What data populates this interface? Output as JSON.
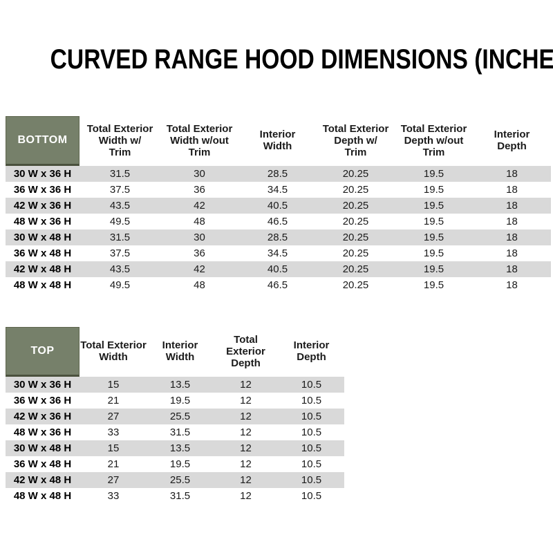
{
  "title": "CURVED RANGE HOOD DIMENSIONS (INCHES)",
  "colors": {
    "header_green": "#76806A",
    "header_green_border": "#4A513D",
    "header_green_border_light": "#5D644C",
    "row_stripe": "#D9D9D9"
  },
  "bottom_table": {
    "label": "BOTTOM",
    "columns": [
      "Total Exterior\nWidth w/\nTrim",
      "Total Exterior\nWidth w/out\nTrim",
      "Interior\nWidth",
      "Total Exterior\nDepth w/\nTrim",
      "Total Exterior\nDepth w/out\nTrim",
      "Interior\nDepth"
    ],
    "rows": [
      {
        "size": "30 W x 36 H",
        "values": [
          "31.5",
          "30",
          "28.5",
          "20.25",
          "19.5",
          "18"
        ]
      },
      {
        "size": "36 W x 36 H",
        "values": [
          "37.5",
          "36",
          "34.5",
          "20.25",
          "19.5",
          "18"
        ]
      },
      {
        "size": "42 W x 36 H",
        "values": [
          "43.5",
          "42",
          "40.5",
          "20.25",
          "19.5",
          "18"
        ]
      },
      {
        "size": "48 W x 36 H",
        "values": [
          "49.5",
          "48",
          "46.5",
          "20.25",
          "19.5",
          "18"
        ]
      },
      {
        "size": "30 W x 48 H",
        "values": [
          "31.5",
          "30",
          "28.5",
          "20.25",
          "19.5",
          "18"
        ]
      },
      {
        "size": "36 W x 48 H",
        "values": [
          "37.5",
          "36",
          "34.5",
          "20.25",
          "19.5",
          "18"
        ]
      },
      {
        "size": "42 W x 48 H",
        "values": [
          "43.5",
          "42",
          "40.5",
          "20.25",
          "19.5",
          "18"
        ]
      },
      {
        "size": "48 W x 48 H",
        "values": [
          "49.5",
          "48",
          "46.5",
          "20.25",
          "19.5",
          "18"
        ]
      }
    ]
  },
  "top_table": {
    "label": "TOP",
    "columns": [
      "Total Exterior\nWidth",
      "Interior\nWidth",
      "Total Exterior\nDepth",
      "Interior\nDepth"
    ],
    "rows": [
      {
        "size": "30 W x 36 H",
        "values": [
          "15",
          "13.5",
          "12",
          "10.5"
        ]
      },
      {
        "size": "36 W x 36 H",
        "values": [
          "21",
          "19.5",
          "12",
          "10.5"
        ]
      },
      {
        "size": "42 W x 36 H",
        "values": [
          "27",
          "25.5",
          "12",
          "10.5"
        ]
      },
      {
        "size": "48 W x 36 H",
        "values": [
          "33",
          "31.5",
          "12",
          "10.5"
        ]
      },
      {
        "size": "30 W x 48 H",
        "values": [
          "15",
          "13.5",
          "12",
          "10.5"
        ]
      },
      {
        "size": "36 W x 48 H",
        "values": [
          "21",
          "19.5",
          "12",
          "10.5"
        ]
      },
      {
        "size": "42 W x 48 H",
        "values": [
          "27",
          "25.5",
          "12",
          "10.5"
        ]
      },
      {
        "size": "48 W x 48 H",
        "values": [
          "33",
          "31.5",
          "12",
          "10.5"
        ]
      }
    ]
  }
}
